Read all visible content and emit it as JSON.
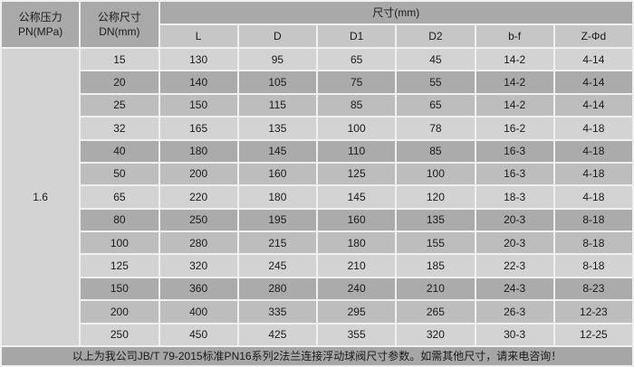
{
  "table": {
    "header": {
      "pressure_col": {
        "line1": "公称压力",
        "line2": "PN(MPa)"
      },
      "size_col": {
        "line1": "公称尺寸",
        "line2": "DN(mm)"
      },
      "dimension_group": "尺寸(mm)",
      "sub_columns": [
        "L",
        "D",
        "D1",
        "D2",
        "b-f",
        "Z-Φd"
      ]
    },
    "pn_value": "1.6",
    "rows": [
      [
        "15",
        "130",
        "95",
        "65",
        "45",
        "14-2",
        "4-14"
      ],
      [
        "20",
        "140",
        "105",
        "75",
        "55",
        "14-2",
        "4-14"
      ],
      [
        "25",
        "150",
        "115",
        "85",
        "65",
        "14-2",
        "4-14"
      ],
      [
        "32",
        "165",
        "135",
        "100",
        "78",
        "16-2",
        "4-18"
      ],
      [
        "40",
        "180",
        "145",
        "110",
        "85",
        "16-3",
        "4-18"
      ],
      [
        "50",
        "200",
        "160",
        "125",
        "100",
        "16-3",
        "4-18"
      ],
      [
        "65",
        "220",
        "180",
        "145",
        "120",
        "18-3",
        "4-18"
      ],
      [
        "80",
        "250",
        "195",
        "160",
        "135",
        "20-3",
        "8-18"
      ],
      [
        "100",
        "280",
        "215",
        "180",
        "155",
        "20-3",
        "8-18"
      ],
      [
        "125",
        "320",
        "245",
        "210",
        "185",
        "22-3",
        "8-18"
      ],
      [
        "150",
        "360",
        "280",
        "240",
        "210",
        "24-3",
        "8-23"
      ],
      [
        "200",
        "400",
        "335",
        "295",
        "265",
        "26-3",
        "12-23"
      ],
      [
        "250",
        "450",
        "425",
        "355",
        "320",
        "30-3",
        "12-25"
      ]
    ],
    "footer": "以上为我公司JB/T 79-2015标准PN16系列2法兰连接浮动球阀尺寸参数。如需其他尺寸，请来电咨询！"
  },
  "colors": {
    "header_bg": "#a9a9a9",
    "subheader_bg": "#c6c6c6",
    "row_light": "#d3d3d3",
    "row_dark": "#ababab",
    "row_medium": "#bdbdbd",
    "pn_cell_bg": "#d2d2d2",
    "footer_bg": "#a6a6a6",
    "grid_line": "#f0f0f0",
    "text": "#1a1a1a"
  }
}
